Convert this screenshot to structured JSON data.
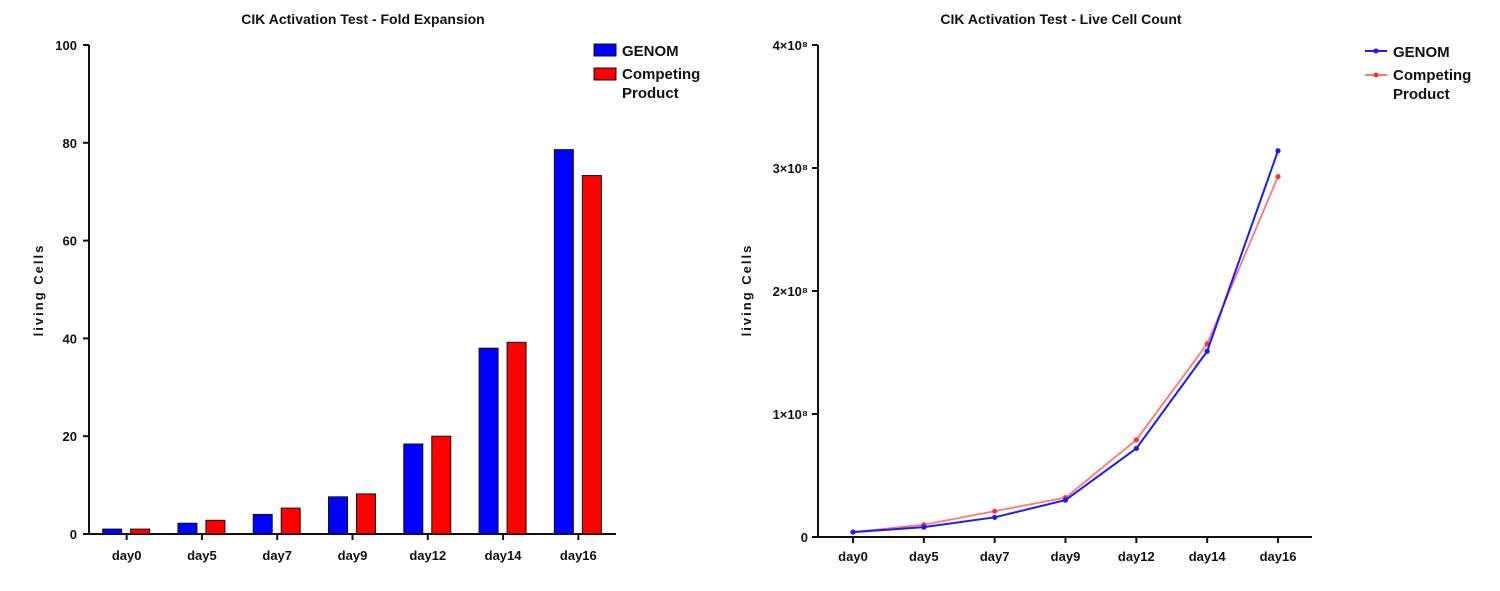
{
  "chart_data": [
    {
      "type": "bar",
      "title": "CIK Activation Test - Fold Expansion",
      "xlabel": "",
      "ylabel": "living Cells",
      "ylim": [
        0,
        100
      ],
      "yticks": [
        "0",
        "20",
        "40",
        "60",
        "80",
        "100"
      ],
      "categories": [
        "day0",
        "day5",
        "day7",
        "day9",
        "day12",
        "day14",
        "day16"
      ],
      "legend_position": "top-right",
      "series": [
        {
          "name": "GENOM",
          "color": "#0000ff",
          "values": [
            1,
            2.2,
            4,
            7.6,
            18.4,
            38,
            78.6
          ]
        },
        {
          "name": "Competing Product",
          "color": "#ff0000",
          "values": [
            1,
            2.8,
            5.3,
            8.2,
            20,
            39.2,
            73.3
          ]
        }
      ]
    },
    {
      "type": "line",
      "title": "CIK Activation Test - Live Cell Count",
      "xlabel": "",
      "ylabel": "living Cells",
      "ylim": [
        0,
        400000000
      ],
      "yticks": [
        "0",
        "1×10⁸",
        "2×10⁸",
        "3×10⁸",
        "4×10⁸"
      ],
      "categories": [
        "day0",
        "day5",
        "day7",
        "day9",
        "day12",
        "day14",
        "day16"
      ],
      "legend_position": "top-right",
      "series": [
        {
          "name": "GENOM",
          "color": "#1a1aff",
          "values": [
            4000000,
            8000000,
            16000000,
            30000000,
            72000000,
            151000000,
            314000000
          ]
        },
        {
          "name": "Competing Product",
          "color": "#ff7777",
          "values": [
            4000000,
            10000000,
            21000000,
            32000000,
            79000000,
            157000000,
            293000000
          ]
        }
      ]
    }
  ]
}
